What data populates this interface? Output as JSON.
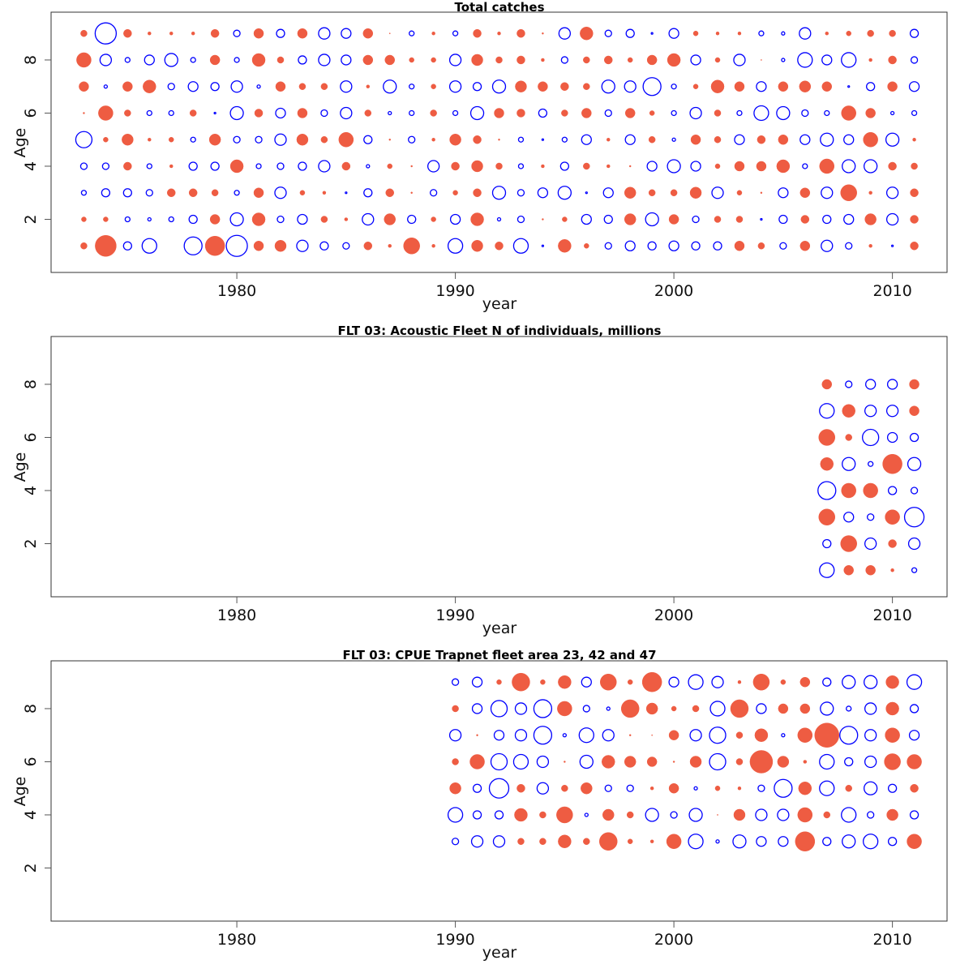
{
  "colors": {
    "positive": "#EE5C42",
    "negative": "#0000FF"
  },
  "chart_data": [
    {
      "type": "scatter",
      "subtype": "bubble",
      "title": "Total catches",
      "xlabel": "year",
      "ylabel": "Age",
      "xlim": [
        1971.5,
        2012.5
      ],
      "ylim": [
        0,
        9.8
      ],
      "xticks": [
        1980,
        1990,
        2000,
        2010
      ],
      "yticks": [
        2,
        4,
        6,
        8
      ],
      "grid": false,
      "encoding": "bubble area ~ |residual|; filled = positive, hollow = negative",
      "years": [
        1973,
        1974,
        1975,
        1976,
        1977,
        1978,
        1979,
        1980,
        1981,
        1982,
        1983,
        1984,
        1985,
        1986,
        1987,
        1988,
        1989,
        1990,
        1991,
        1992,
        1993,
        1994,
        1995,
        1996,
        1997,
        1998,
        1999,
        2000,
        2001,
        2002,
        2003,
        2004,
        2005,
        2006,
        2007,
        2008,
        2009,
        2010,
        2011
      ],
      "ages": [
        1,
        2,
        3,
        4,
        5,
        6,
        7,
        8,
        9
      ],
      "residuals": {
        "9": [
          4,
          -13,
          5,
          2,
          2,
          2,
          5,
          -4,
          6,
          -5,
          6,
          -7,
          -6,
          6,
          0.5,
          -3,
          2,
          -3,
          5,
          2,
          5,
          1,
          -7,
          8,
          -4,
          -5,
          -1,
          -6,
          3,
          2,
          2,
          -3,
          -2,
          -7,
          2,
          3,
          4,
          4,
          -5
        ],
        "8": [
          9,
          -7,
          -3,
          -6,
          -8,
          -3,
          6,
          -3,
          8,
          4,
          -5,
          -7,
          -6,
          6,
          6,
          3,
          3,
          -7,
          7,
          4,
          5,
          2,
          -4,
          4,
          5,
          3,
          6,
          8,
          -6,
          3,
          -7,
          0.5,
          -2,
          -9,
          -6,
          -9,
          2,
          5,
          -4
        ],
        "7": [
          6,
          -2,
          6,
          8,
          -4,
          -6,
          -5,
          -7,
          -2,
          6,
          4,
          4,
          -7,
          2,
          -8,
          -3,
          3,
          -7,
          -5,
          -8,
          7,
          6,
          5,
          4,
          -8,
          -7,
          -11,
          -3,
          3,
          8,
          6,
          -6,
          6,
          7,
          6,
          -1,
          -5,
          6,
          -6
        ],
        "6": [
          1,
          9,
          4,
          -3,
          -3,
          4,
          -1,
          -8,
          5,
          -6,
          6,
          -4,
          -7,
          4,
          -2,
          -3,
          4,
          -3,
          -8,
          6,
          5,
          -5,
          4,
          6,
          -4,
          6,
          3,
          -3,
          -7,
          4,
          -3,
          -9,
          -8,
          -4,
          -3,
          9,
          6,
          -2,
          -3
        ],
        "5": [
          -10,
          3,
          7,
          2,
          3,
          -3,
          7,
          -4,
          -4,
          -7,
          7,
          4,
          9,
          -5,
          1,
          -4,
          2,
          7,
          5,
          1,
          -3,
          -1,
          -3,
          -6,
          2,
          -6,
          4,
          -2,
          6,
          4,
          -6,
          5,
          6,
          -6,
          -8,
          -6,
          9,
          -8,
          2
        ],
        "4": [
          -4,
          -4,
          5,
          -3,
          2,
          -5,
          -5,
          8,
          -3,
          -4,
          -5,
          -7,
          5,
          -2,
          3,
          1,
          -7,
          5,
          7,
          4,
          -3,
          2,
          -5,
          4,
          2,
          1,
          -6,
          -8,
          -6,
          3,
          6,
          6,
          8,
          -3,
          9,
          -8,
          -8,
          5,
          4
        ],
        "3": [
          -3,
          -5,
          -5,
          -4,
          5,
          5,
          4,
          -3,
          6,
          -7,
          3,
          2,
          -1,
          -5,
          5,
          1,
          -4,
          3,
          5,
          -8,
          -4,
          -6,
          -8,
          -1,
          -6,
          7,
          4,
          4,
          7,
          -7,
          3,
          1,
          -6,
          6,
          -7,
          10,
          2,
          -7,
          5
        ],
        "2": [
          3,
          3,
          -3,
          -2,
          -3,
          -5,
          6,
          -8,
          8,
          -4,
          -6,
          4,
          2,
          -7,
          7,
          -5,
          3,
          -6,
          8,
          -2,
          -4,
          1,
          3,
          -6,
          -5,
          7,
          -8,
          6,
          -4,
          4,
          4,
          -1,
          -5,
          5,
          -5,
          -6,
          7,
          -7,
          5
        ],
        "1": [
          4,
          13,
          -5,
          -9,
          0,
          -11,
          12,
          -13,
          6,
          7,
          -7,
          -5,
          -4,
          5,
          2,
          10,
          2,
          -9,
          7,
          5,
          -9,
          -1,
          8,
          3,
          -4,
          -6,
          -5,
          -6,
          -5,
          -5,
          6,
          4,
          -4,
          6,
          -7,
          -4,
          2,
          -1,
          5
        ]
      }
    },
    {
      "type": "scatter",
      "subtype": "bubble",
      "title": "FLT 03: Acoustic Fleet  N of individuals, millions",
      "xlabel": "year",
      "ylabel": "Age",
      "xlim": [
        1971.5,
        2012.5
      ],
      "ylim": [
        0,
        9.8
      ],
      "xticks": [
        1980,
        1990,
        2000,
        2010
      ],
      "yticks": [
        2,
        4,
        6,
        8
      ],
      "grid": false,
      "encoding": "bubble area ~ |residual|; filled = positive, hollow = negative",
      "years": [
        2007,
        2008,
        2009,
        2010,
        2011
      ],
      "ages": [
        1,
        2,
        3,
        4,
        5,
        6,
        7,
        8
      ],
      "residuals": {
        "8": [
          6,
          -4,
          -6,
          -6,
          6
        ],
        "7": [
          -9,
          8,
          -7,
          -7,
          6
        ],
        "6": [
          10,
          4,
          -10,
          -6,
          -5
        ],
        "5": [
          8,
          -8,
          -3,
          12,
          -8
        ],
        "4": [
          -11,
          9,
          9,
          -5,
          -4
        ],
        "3": [
          10,
          -6,
          -4,
          9,
          -12
        ],
        "2": [
          -5,
          10,
          -7,
          5,
          -7
        ],
        "1": [
          -9,
          6,
          6,
          2,
          -3
        ]
      }
    },
    {
      "type": "scatter",
      "subtype": "bubble",
      "title": "FLT 03: CPUE Trapnet fleet area 23, 42 and 47",
      "xlabel": "year",
      "ylabel": "Age",
      "xlim": [
        1971.5,
        2012.5
      ],
      "ylim": [
        0,
        9.8
      ],
      "xticks": [
        1980,
        1990,
        2000,
        2010
      ],
      "yticks": [
        2,
        4,
        6,
        8
      ],
      "grid": false,
      "encoding": "bubble area ~ |residual|; filled = positive, hollow = negative",
      "years": [
        1990,
        1991,
        1992,
        1993,
        1994,
        1995,
        1996,
        1997,
        1998,
        1999,
        2000,
        2001,
        2002,
        2003,
        2004,
        2005,
        2006,
        2007,
        2008,
        2009,
        2010,
        2011
      ],
      "ages": [
        3,
        4,
        5,
        6,
        7,
        8,
        9
      ],
      "residuals": {
        "9": [
          -4,
          -6,
          3,
          11,
          3,
          8,
          -6,
          10,
          3,
          12,
          -6,
          -9,
          -7,
          2,
          10,
          3,
          6,
          -5,
          -8,
          -8,
          8,
          -9
        ],
        "8": [
          4,
          -6,
          -10,
          -7,
          -11,
          9,
          -4,
          -2,
          11,
          7,
          3,
          4,
          -9,
          11,
          -6,
          6,
          6,
          -8,
          -3,
          -7,
          8,
          -5
        ],
        "7": [
          -7,
          1,
          -6,
          -7,
          -11,
          -2,
          -9,
          -7,
          1,
          0.5,
          6,
          -7,
          -10,
          4,
          8,
          -2,
          9,
          15,
          -11,
          -7,
          9,
          -6
        ],
        "6": [
          4,
          9,
          -10,
          -9,
          -7,
          1,
          -8,
          8,
          7,
          6,
          1,
          7,
          -10,
          4,
          14,
          7,
          2,
          -9,
          -5,
          -7,
          10,
          9
        ],
        "5": [
          7,
          -5,
          -12,
          5,
          -7,
          4,
          7,
          -4,
          -4,
          2,
          6,
          -2,
          3,
          2,
          -4,
          -11,
          8,
          -9,
          4,
          -8,
          -5,
          5
        ],
        "4": [
          -9,
          -5,
          -5,
          8,
          4,
          10,
          -2,
          7,
          4,
          -8,
          -4,
          -8,
          0.5,
          7,
          -7,
          -7,
          9,
          4,
          -9,
          -4,
          7,
          -5
        ],
        "3": [
          -4,
          -7,
          -7,
          4,
          4,
          8,
          4,
          11,
          3,
          2,
          9,
          -9,
          -2,
          -8,
          -6,
          -6,
          12,
          -5,
          -8,
          -9,
          -5,
          9
        ]
      }
    }
  ]
}
